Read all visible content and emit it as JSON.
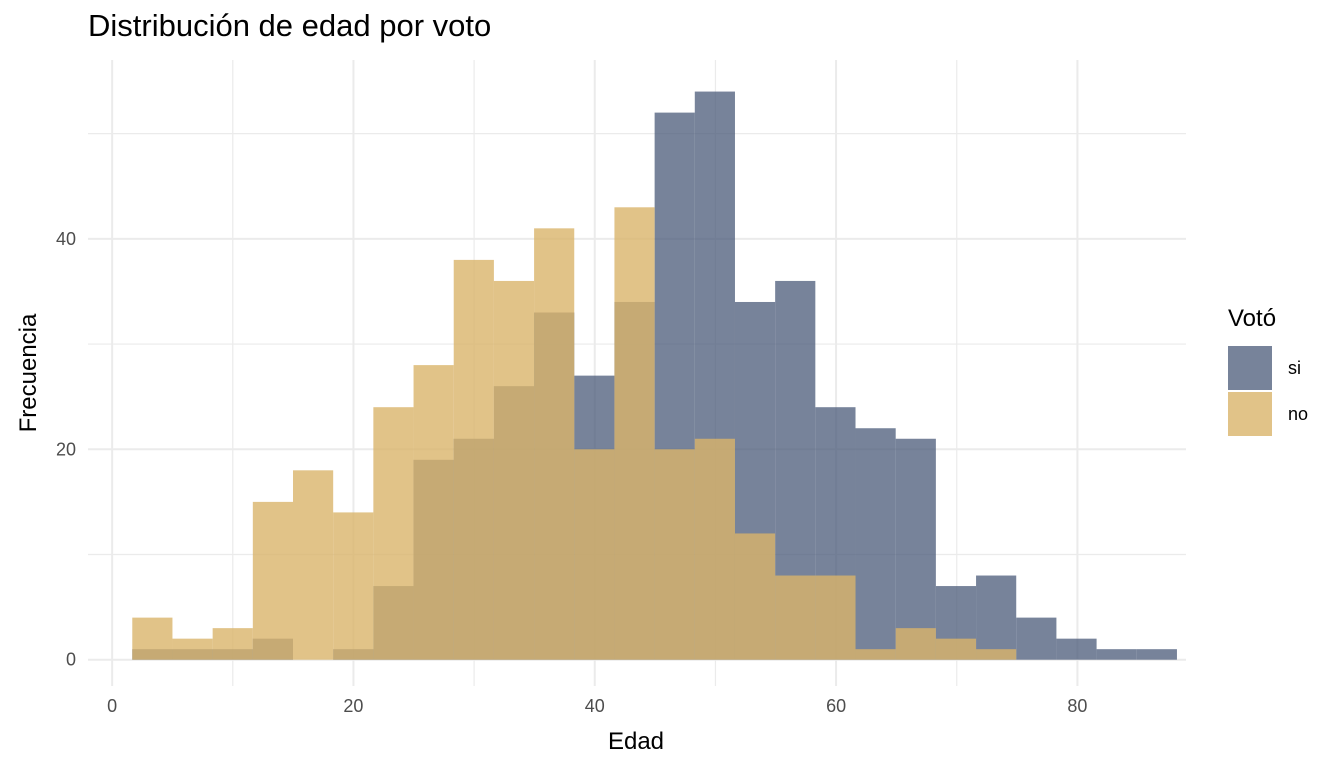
{
  "chart_data": {
    "type": "bar",
    "subtype": "overlaid-histogram",
    "title": "Distribución de edad por voto",
    "xlabel": "Edad",
    "ylabel": "Frecuencia",
    "xlim": [
      -2,
      89
    ],
    "ylim": [
      -2.5,
      57
    ],
    "x_ticks": [
      0,
      20,
      40,
      60,
      80
    ],
    "y_ticks": [
      0,
      20,
      40
    ],
    "grid": true,
    "legend_title": "Votó",
    "legend_position": "right",
    "bin_width": 3.33,
    "bin_start": 1.67,
    "series": [
      {
        "name": "si",
        "color": "#4a5a78",
        "opacity": 0.75,
        "values": [
          1,
          1,
          1,
          2,
          0,
          1,
          7,
          19,
          21,
          26,
          33,
          27,
          34,
          52,
          54,
          34,
          36,
          24,
          22,
          21,
          7,
          8,
          4,
          2,
          1,
          1
        ]
      },
      {
        "name": "no",
        "color": "#d9b46a",
        "opacity": 0.8,
        "values": [
          4,
          2,
          3,
          15,
          18,
          14,
          24,
          28,
          38,
          36,
          41,
          20,
          43,
          20,
          21,
          12,
          8,
          8,
          1,
          3,
          2,
          1,
          0,
          0,
          0,
          0
        ]
      }
    ]
  }
}
